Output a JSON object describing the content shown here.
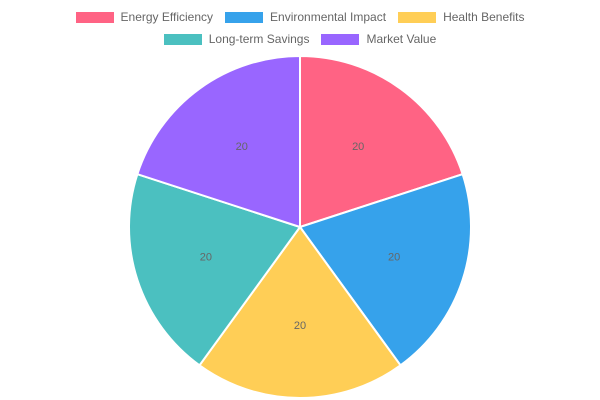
{
  "chart_data": {
    "type": "pie",
    "categories": [
      "Energy Efficiency",
      "Environmental Impact",
      "Health Benefits",
      "Long-term Savings",
      "Market Value"
    ],
    "values": [
      20,
      20,
      20,
      20,
      20
    ],
    "colors": [
      "#ff6384",
      "#36a2eb",
      "#ffce56",
      "#4bc0c0",
      "#9966ff"
    ],
    "data_labels": [
      "20",
      "20",
      "20",
      "20",
      "20"
    ],
    "legend_position": "top",
    "title": ""
  }
}
